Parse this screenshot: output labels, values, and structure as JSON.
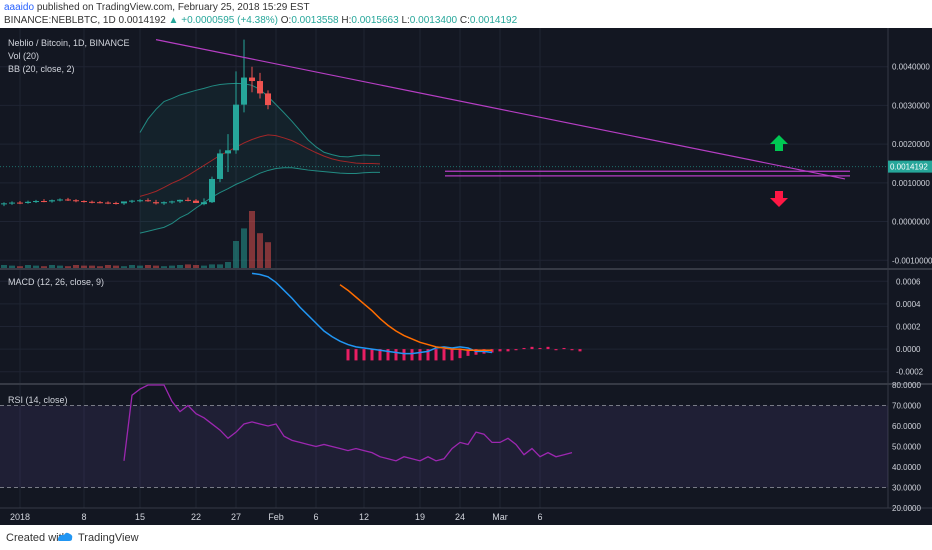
{
  "header": {
    "author": "aaaido",
    "published_text": "published on TradingView.com, February 25, 2018 15:29 EST",
    "symbol": "BINANCE:NEBLBTC, 1D",
    "last": "0.0014192",
    "change": "+0.0000595 (+4.38%)",
    "o_label": "O:",
    "o": "0.0013558",
    "h_label": "H:",
    "h": "0.0015663",
    "l_label": "L:",
    "l": "0.0013400",
    "c_label": "C:",
    "c": "0.0014192"
  },
  "legend": {
    "title": "Neblio / Bitcoin, 1D, BINANCE",
    "vol": "Vol (20)",
    "bb": "BB (20, close, 2)",
    "macd": "MACD (12, 26, close, 9)",
    "rsi": "RSI (14, close)"
  },
  "colors": {
    "background": "#131722",
    "up": "#26a69a",
    "down": "#ef5350",
    "trendline": "#b63ec4",
    "macd_line": "#2196f3",
    "signal_line": "#ff6d00",
    "histogram": "#e91e63",
    "rsi_line": "#9c27b0",
    "bb_basis": "#c62828",
    "bb_band": "#26a69a",
    "arrow_up": "#00c853",
    "arrow_down": "#ff1744",
    "vol_ma": "#f57c00"
  },
  "icons": [
    "arrow-up-icon",
    "arrow-down-icon",
    "tradingview-logo-icon"
  ],
  "chart_data": [
    {
      "type": "candlestick",
      "panel": "price",
      "ylim": [
        -0.0012,
        0.005
      ],
      "ticks": [
        "0.0040000",
        "0.0030000",
        "0.0020000",
        "0.0010000",
        "0.0000000",
        "-0.0010000"
      ],
      "tick_values": [
        0.004,
        0.003,
        0.002,
        0.001,
        0.0,
        -0.001
      ],
      "last_value": "0.0014192",
      "x_ticks": [
        "2018",
        "8",
        "15",
        "22",
        "27",
        "Feb",
        "6",
        "12",
        "19",
        "24",
        "Mar",
        "6"
      ],
      "x_tick_index": [
        2,
        10,
        17,
        24,
        29,
        34,
        39,
        45,
        52,
        57,
        62,
        67
      ],
      "candles": [
        [
          0.00045,
          0.0005,
          0.0004,
          0.00047
        ],
        [
          0.00047,
          0.00052,
          0.00043,
          0.00049
        ],
        [
          0.00049,
          0.00053,
          0.00045,
          0.00048
        ],
        [
          0.00048,
          0.00054,
          0.00046,
          0.00051
        ],
        [
          0.00051,
          0.00056,
          0.00048,
          0.00053
        ],
        [
          0.00053,
          0.00058,
          0.0005,
          0.00052
        ],
        [
          0.00052,
          0.00057,
          0.00049,
          0.00055
        ],
        [
          0.00055,
          0.0006,
          0.00052,
          0.00057
        ],
        [
          0.00057,
          0.00061,
          0.00053,
          0.00055
        ],
        [
          0.00055,
          0.00058,
          0.0005,
          0.00053
        ],
        [
          0.00053,
          0.00055,
          0.00049,
          0.00051
        ],
        [
          0.00051,
          0.00054,
          0.00047,
          0.0005
        ],
        [
          0.0005,
          0.00053,
          0.00047,
          0.00049
        ],
        [
          0.00049,
          0.00052,
          0.00045,
          0.00048
        ],
        [
          0.00048,
          0.00051,
          0.00044,
          0.00047
        ],
        [
          0.00047,
          0.0005,
          0.00043,
          0.00052
        ],
        [
          0.00052,
          0.00056,
          0.00048,
          0.00054
        ],
        [
          0.00054,
          0.00058,
          0.0005,
          0.00055
        ],
        [
          0.00055,
          0.0006,
          0.00051,
          0.00053
        ],
        [
          0.0005,
          0.00056,
          0.00044,
          0.00047
        ],
        [
          0.00047,
          0.00052,
          0.00043,
          0.0005
        ],
        [
          0.0005,
          0.00054,
          0.00046,
          0.00052
        ],
        [
          0.00052,
          0.00057,
          0.00048,
          0.00056
        ],
        [
          0.00056,
          0.00062,
          0.00052,
          0.00054
        ],
        [
          0.00054,
          0.00058,
          0.0005,
          0.00048
        ],
        [
          0.00045,
          0.0006,
          0.00042,
          0.0005
        ],
        [
          0.0005,
          0.00116,
          0.00048,
          0.0011
        ],
        [
          0.0011,
          0.00186,
          0.00102,
          0.00176
        ],
        [
          0.00176,
          0.00226,
          0.00128,
          0.00184
        ],
        [
          0.00184,
          0.00388,
          0.00175,
          0.00302
        ],
        [
          0.00302,
          0.0047,
          0.00282,
          0.00372
        ],
        [
          0.00372,
          0.004,
          0.00334,
          0.00363
        ],
        [
          0.00363,
          0.00384,
          0.00318,
          0.00331
        ],
        [
          0.00331,
          0.00339,
          0.0029,
          0.00301
        ]
      ],
      "volumes": [
        0.05,
        0.04,
        0.03,
        0.05,
        0.04,
        0.03,
        0.05,
        0.04,
        0.03,
        0.05,
        0.04,
        0.04,
        0.03,
        0.05,
        0.04,
        0.03,
        0.05,
        0.04,
        0.05,
        0.04,
        0.03,
        0.04,
        0.05,
        0.06,
        0.05,
        0.04,
        0.06,
        0.06,
        0.1,
        0.45,
        0.66,
        0.95,
        0.58,
        0.43
      ],
      "trendline": {
        "start": [
          0.0047,
          0.0005
        ],
        "end": [
          0.0011,
          0.001
        ]
      },
      "support_lines": [
        0.0013,
        0.00118
      ],
      "bb_basis": [
        0.00065,
        0.00071,
        0.00078,
        0.00088,
        0.00099,
        0.00108,
        0.00119,
        0.00132,
        0.00145,
        0.00158,
        0.00171,
        0.00181,
        0.00192,
        0.00203,
        0.00212,
        0.00219,
        0.00224,
        0.00222,
        0.00216,
        0.00209,
        0.00199,
        0.00188,
        0.00178,
        0.00169,
        0.00162,
        0.00157,
        0.00154,
        0.00151,
        0.0015,
        0.0015,
        0.00149
      ],
      "bb_upper": [
        0.0023,
        0.00265,
        0.0029,
        0.0031,
        0.00318,
        0.00327,
        0.00333,
        0.00339,
        0.00344,
        0.0035,
        0.00354,
        0.00356,
        0.00357,
        0.00356,
        0.00352,
        0.00341,
        0.00323,
        0.00302,
        0.00281,
        0.00259,
        0.00235,
        0.00211,
        0.00193,
        0.00179,
        0.00173,
        0.00168,
        0.00167,
        0.0017,
        0.00172,
        0.00171,
        0.00171
      ],
      "bb_lower": [
        -0.0003,
        -0.00025,
        -0.0002,
        -0.00015,
        -5e-05,
        0.0001,
        0.0002,
        0.00035,
        0.00049,
        0.00063,
        0.00075,
        0.00085,
        0.00096,
        0.00105,
        0.00115,
        0.00125,
        0.00132,
        0.00137,
        0.00139,
        0.00139,
        0.00136,
        0.00133,
        0.00131,
        0.00129,
        0.00127,
        0.00125,
        0.00124,
        0.00124,
        0.00126,
        0.00127,
        0.00127
      ]
    },
    {
      "type": "line",
      "panel": "macd",
      "ylim": [
        -0.0003,
        0.0007
      ],
      "ticks": [
        "0.0006",
        "0.0004",
        "0.0002",
        "0.0000",
        "-0.0002"
      ],
      "tick_values": [
        0.0006,
        0.0004,
        0.0002,
        0.0,
        -0.0002
      ],
      "series": [
        {
          "values": [
            0.00067,
            0.00066,
            0.00064,
            0.00059,
            0.00052,
            0.00045,
            0.00037,
            0.0003,
            0.00023,
            0.00016,
            0.00011,
            7e-05,
            4e-05,
            2e-05,
            1e-05,
            0.0,
            -1e-05,
            -2e-05,
            -3e-05,
            -4e-05,
            -4e-05,
            -3e-05,
            -2e-05,
            1e-05,
            2e-05,
            1e-05,
            2e-05,
            1e-05,
            -2e-05,
            -2e-05,
            -3e-05
          ]
        },
        {
          "values": [
            0.00057,
            0.00052,
            0.00046,
            0.0004,
            0.00034,
            0.00027,
            0.00021,
            0.00016,
            0.00012,
            9e-05,
            6e-05,
            4e-05,
            2e-05,
            1e-05,
            0.0,
            0.0,
            -1e-05,
            -1e-05,
            -1e-05,
            -1e-05
          ]
        }
      ],
      "histogram": [
        -0.0001,
        -0.0001,
        -0.0001,
        -0.0001,
        -0.0001,
        -0.0001,
        -0.0001,
        -0.0001,
        -0.0001,
        -0.0001,
        -0.0001,
        -0.0001,
        -0.0001,
        -0.0001,
        -8e-05,
        -6e-05,
        -5e-05,
        -4e-05,
        -3e-05,
        -2e-05,
        -2e-05,
        -1e-05,
        1e-05,
        2e-05,
        1e-05,
        2e-05,
        -1e-05,
        1e-05,
        -1e-05,
        -2e-05
      ]
    },
    {
      "type": "line",
      "panel": "rsi",
      "ylim": [
        20,
        80
      ],
      "ticks": [
        "80.0000",
        "70.0000",
        "60.0000",
        "50.0000",
        "40.0000",
        "30.0000",
        "20.0000"
      ],
      "tick_values": [
        80,
        70,
        60,
        50,
        40,
        30,
        20
      ],
      "bands": [
        70,
        30
      ],
      "series": [
        {
          "values": [
            43,
            75,
            78,
            82,
            86,
            80,
            72,
            67,
            70,
            66,
            64,
            61,
            58,
            54,
            57,
            61,
            62,
            61,
            60,
            61,
            55,
            53,
            52,
            51,
            50,
            51,
            50,
            49,
            48,
            49,
            48,
            47,
            45,
            44,
            43,
            45,
            44,
            43,
            45,
            43,
            44,
            49,
            52,
            51,
            57,
            56,
            52,
            52,
            54,
            51,
            46,
            49,
            45,
            47,
            45,
            46,
            47
          ]
        }
      ]
    }
  ],
  "footer": {
    "created_with": "Created with",
    "brand": "TradingView"
  }
}
